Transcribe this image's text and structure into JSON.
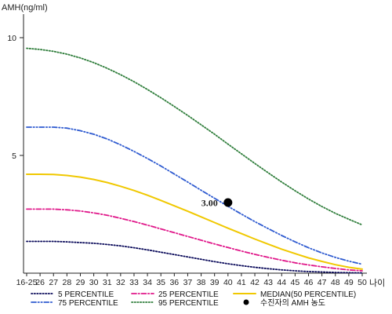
{
  "chart_data": {
    "type": "line",
    "ylabel": "AMH(ng/ml)",
    "xlabel": "나이",
    "categories": [
      "16-25",
      "26",
      "27",
      "28",
      "29",
      "30",
      "31",
      "32",
      "33",
      "34",
      "35",
      "36",
      "37",
      "38",
      "39",
      "40",
      "41",
      "42",
      "43",
      "44",
      "45",
      "46",
      "47",
      "48",
      "49",
      "50"
    ],
    "ylim": [
      0,
      11
    ],
    "yticks": [
      5,
      10
    ],
    "grid": false,
    "legend_position": "bottom",
    "series": [
      {
        "name": "5 PERCENTILE",
        "color": "#0a0a5a",
        "dash": "dotted",
        "values": [
          1.35,
          1.35,
          1.35,
          1.33,
          1.3,
          1.27,
          1.22,
          1.16,
          1.08,
          0.99,
          0.89,
          0.79,
          0.69,
          0.59,
          0.49,
          0.4,
          0.32,
          0.25,
          0.19,
          0.14,
          0.1,
          0.07,
          0.05,
          0.03,
          0.02,
          0.01
        ]
      },
      {
        "name": "25 PERCENTILE",
        "color": "#e0188a",
        "dash": "dashdot",
        "values": [
          2.72,
          2.72,
          2.72,
          2.69,
          2.64,
          2.56,
          2.46,
          2.33,
          2.19,
          2.04,
          1.88,
          1.72,
          1.56,
          1.4,
          1.24,
          1.09,
          0.94,
          0.8,
          0.67,
          0.55,
          0.44,
          0.35,
          0.27,
          0.2,
          0.14,
          0.1
        ]
      },
      {
        "name": "MEDIAN(50 PERCENTILE)",
        "color": "#f0c800",
        "dash": "solid",
        "values": [
          4.2,
          4.2,
          4.19,
          4.15,
          4.08,
          3.98,
          3.85,
          3.69,
          3.51,
          3.31,
          3.09,
          2.86,
          2.63,
          2.39,
          2.15,
          1.91,
          1.68,
          1.45,
          1.23,
          1.02,
          0.83,
          0.65,
          0.5,
          0.36,
          0.25,
          0.17
        ]
      },
      {
        "name": "75 PERCENTILE",
        "color": "#2f5bd0",
        "dash": "dashdotdot",
        "values": [
          6.2,
          6.2,
          6.2,
          6.16,
          6.05,
          5.9,
          5.7,
          5.45,
          5.17,
          4.87,
          4.55,
          4.21,
          3.87,
          3.52,
          3.18,
          2.84,
          2.51,
          2.19,
          1.89,
          1.6,
          1.33,
          1.08,
          0.86,
          0.67,
          0.51,
          0.38
        ]
      },
      {
        "name": "95 PERCENTILE",
        "color": "#2e7d3a",
        "dash": "dotted",
        "values": [
          9.55,
          9.5,
          9.42,
          9.3,
          9.14,
          8.94,
          8.7,
          8.43,
          8.13,
          7.8,
          7.45,
          7.08,
          6.7,
          6.3,
          5.9,
          5.48,
          5.07,
          4.66,
          4.26,
          3.87,
          3.5,
          3.15,
          2.83,
          2.54,
          2.29,
          2.05
        ]
      }
    ],
    "marker": {
      "name": "수진자의 AMH 농도",
      "x": "40",
      "y": 3.0,
      "label": "3.00",
      "color": "#000000"
    }
  }
}
